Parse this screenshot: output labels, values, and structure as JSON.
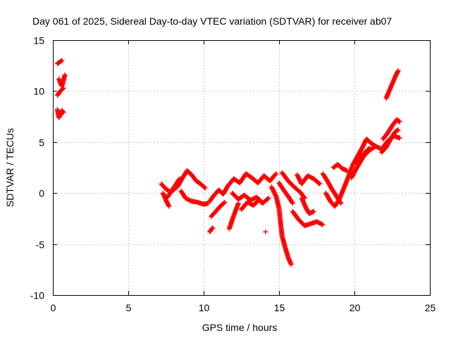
{
  "chart_data": {
    "type": "scatter",
    "title": "Day 061 of 2025, Sidereal Day-to-day VTEC variation (SDTVAR) for receiver ab07",
    "xlabel": "GPS time / hours",
    "ylabel": "SDTVAR / TECUs",
    "xlim": [
      0,
      25
    ],
    "ylim": [
      -10,
      15
    ],
    "xticks": [
      0,
      5,
      10,
      15,
      20,
      25
    ],
    "yticks": [
      -10,
      -5,
      0,
      5,
      10,
      15
    ],
    "grid": true,
    "marker": "+",
    "color": "#ff0000",
    "series": [
      {
        "name": "SDTVAR",
        "segments": [
          [
            [
              0.3,
              12.7
            ],
            [
              0.5,
              12.9
            ],
            [
              0.6,
              13.0
            ]
          ],
          [
            [
              0.4,
              11.2
            ],
            [
              0.5,
              10.8
            ],
            [
              0.6,
              10.5
            ],
            [
              0.7,
              11.0
            ],
            [
              0.8,
              11.6
            ]
          ],
          [
            [
              0.3,
              9.6
            ],
            [
              0.5,
              10.0
            ],
            [
              0.7,
              10.3
            ]
          ],
          [
            [
              0.3,
              8.2
            ],
            [
              0.4,
              7.4
            ],
            [
              0.5,
              7.7
            ],
            [
              0.6,
              8.1
            ],
            [
              0.7,
              7.9
            ]
          ],
          [
            [
              7.2,
              0.9
            ],
            [
              7.5,
              0.4
            ],
            [
              7.8,
              0.1
            ],
            [
              8.0,
              0.3
            ],
            [
              8.3,
              0.7
            ],
            [
              8.6,
              1.5
            ],
            [
              8.9,
              2.2
            ],
            [
              9.2,
              1.8
            ],
            [
              9.5,
              1.2
            ],
            [
              9.8,
              0.9
            ],
            [
              10.1,
              0.5
            ]
          ],
          [
            [
              7.3,
              0.0
            ],
            [
              7.5,
              -0.7
            ],
            [
              7.7,
              -1.3
            ]
          ],
          [
            [
              8.5,
              0.2
            ],
            [
              8.8,
              -0.5
            ],
            [
              9.2,
              -0.8
            ],
            [
              9.6,
              -0.9
            ],
            [
              10.0,
              -1.1
            ],
            [
              10.3,
              -1.0
            ]
          ],
          [
            [
              7.6,
              -0.4
            ],
            [
              8.0,
              0.5
            ],
            [
              8.4,
              1.4
            ]
          ],
          [
            [
              10.4,
              -0.8
            ],
            [
              10.7,
              -0.2
            ],
            [
              11.0,
              0.3
            ],
            [
              11.3,
              -0.1
            ],
            [
              11.6,
              0.7
            ],
            [
              12.0,
              1.4
            ],
            [
              12.4,
              1.0
            ],
            [
              12.8,
              1.9
            ],
            [
              13.2,
              1.5
            ],
            [
              13.6,
              1.0
            ],
            [
              14.0,
              1.7
            ],
            [
              14.4,
              1.2
            ],
            [
              14.8,
              1.9
            ]
          ],
          [
            [
              10.5,
              -2.3
            ],
            [
              10.8,
              -1.8
            ],
            [
              11.1,
              -1.3
            ],
            [
              11.4,
              -0.9
            ]
          ],
          [
            [
              10.4,
              -3.8
            ],
            [
              10.6,
              -3.4
            ]
          ],
          [
            [
              11.7,
              -3.5
            ],
            [
              11.9,
              -2.6
            ],
            [
              12.1,
              -1.8
            ],
            [
              12.3,
              -1.0
            ]
          ],
          [
            [
              11.9,
              0.0
            ],
            [
              12.3,
              -0.6
            ],
            [
              12.7,
              -0.2
            ],
            [
              13.1,
              -0.7
            ],
            [
              13.5,
              -0.4
            ],
            [
              13.9,
              -1.0
            ],
            [
              14.3,
              -0.5
            ]
          ],
          [
            [
              12.5,
              -1.6
            ],
            [
              12.9,
              -0.9
            ],
            [
              13.3,
              -1.2
            ],
            [
              13.7,
              -0.6
            ]
          ],
          [
            [
              14.1,
              -3.8
            ]
          ],
          [
            [
              14.5,
              0.6
            ],
            [
              14.8,
              -0.3
            ],
            [
              15.0,
              -1.5
            ],
            [
              15.1,
              -2.9
            ],
            [
              15.2,
              -4.2
            ],
            [
              15.4,
              -5.3
            ],
            [
              15.6,
              -6.3
            ],
            [
              15.8,
              -7.0
            ]
          ],
          [
            [
              15.0,
              1.0
            ],
            [
              15.3,
              0.3
            ],
            [
              15.6,
              -0.3
            ],
            [
              15.9,
              -1.0
            ]
          ],
          [
            [
              15.2,
              2.0
            ],
            [
              15.6,
              1.2
            ],
            [
              16.0,
              0.6
            ],
            [
              16.4,
              0.1
            ],
            [
              16.7,
              -0.5
            ]
          ],
          [
            [
              15.9,
              -1.8
            ],
            [
              16.3,
              -2.6
            ],
            [
              16.7,
              -3.2
            ],
            [
              17.1,
              -3.0
            ],
            [
              17.5,
              -2.8
            ],
            [
              17.9,
              -3.1
            ]
          ],
          [
            [
              16.2,
              1.8
            ],
            [
              16.5,
              0.9
            ],
            [
              16.9,
              1.7
            ],
            [
              17.3,
              1.4
            ],
            [
              17.7,
              0.9
            ]
          ],
          [
            [
              16.5,
              -0.5
            ],
            [
              16.8,
              -1.5
            ],
            [
              17.0,
              -2.0
            ],
            [
              17.3,
              -1.8
            ]
          ],
          [
            [
              17.9,
              1.9
            ],
            [
              18.2,
              1.2
            ],
            [
              18.5,
              0.4
            ],
            [
              18.8,
              -0.3
            ],
            [
              19.1,
              -1.0
            ]
          ],
          [
            [
              18.6,
              2.5
            ],
            [
              18.9,
              2.8
            ],
            [
              19.2,
              2.4
            ],
            [
              19.5,
              2.2
            ]
          ],
          [
            [
              18.1,
              0.0
            ],
            [
              18.4,
              -0.8
            ],
            [
              18.7,
              -1.3
            ],
            [
              19.0,
              -0.6
            ],
            [
              19.3,
              0.5
            ],
            [
              19.6,
              1.6
            ],
            [
              19.9,
              2.8
            ],
            [
              20.2,
              3.6
            ],
            [
              20.5,
              4.4
            ],
            [
              20.8,
              5.3
            ],
            [
              21.1,
              4.9
            ],
            [
              21.4,
              4.6
            ]
          ],
          [
            [
              19.8,
              1.5
            ],
            [
              20.2,
              2.6
            ],
            [
              20.6,
              3.6
            ],
            [
              21.0,
              4.2
            ],
            [
              21.4,
              4.6
            ],
            [
              21.8,
              4.3
            ],
            [
              22.2,
              5.1
            ],
            [
              22.6,
              5.6
            ],
            [
              23.0,
              5.4
            ]
          ],
          [
            [
              20.1,
              3.0
            ],
            [
              20.4,
              3.4
            ],
            [
              20.7,
              4.0
            ],
            [
              21.0,
              4.4
            ]
          ],
          [
            [
              21.9,
              5.3
            ],
            [
              22.2,
              5.9
            ],
            [
              22.5,
              6.6
            ],
            [
              22.8,
              7.2
            ],
            [
              23.0,
              7.0
            ]
          ],
          [
            [
              21.8,
              4.0
            ],
            [
              22.1,
              4.5
            ],
            [
              22.4,
              5.3
            ],
            [
              22.7,
              6.0
            ],
            [
              22.9,
              6.2
            ]
          ],
          [
            [
              22.1,
              9.3
            ],
            [
              22.3,
              10.0
            ],
            [
              22.5,
              10.7
            ],
            [
              22.7,
              11.4
            ],
            [
              22.9,
              12.0
            ]
          ]
        ]
      }
    ]
  }
}
